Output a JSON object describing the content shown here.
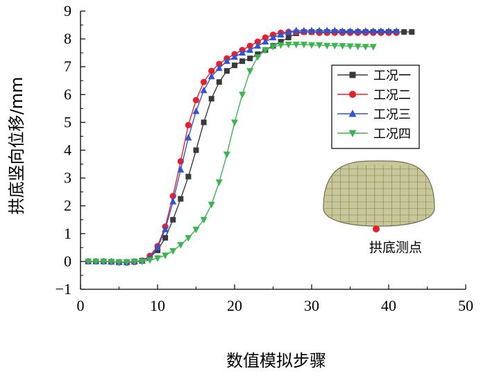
{
  "chart_data": {
    "type": "line",
    "title": "",
    "xlabel": "数值模拟步骤",
    "ylabel": "拱底竖向位移/mm",
    "xlim": [
      0,
      50
    ],
    "ylim": [
      -1,
      9
    ],
    "xticks": [
      0,
      10,
      20,
      30,
      40,
      50
    ],
    "yticks": [
      -1,
      0,
      1,
      2,
      3,
      4,
      5,
      6,
      7,
      8,
      9
    ],
    "legend_position": "right",
    "series": [
      {
        "name": "工况一",
        "color": "#3a3a3a",
        "marker": "square",
        "x": [
          1,
          2,
          3,
          4,
          5,
          6,
          7,
          8,
          9,
          10,
          11,
          12,
          13,
          14,
          15,
          16,
          17,
          18,
          19,
          20,
          21,
          22,
          23,
          24,
          25,
          26,
          27,
          28,
          29,
          30,
          31,
          32,
          33,
          34,
          35,
          36,
          37,
          38,
          39,
          40,
          41,
          42,
          43
        ],
        "y": [
          0.0,
          0.0,
          0.0,
          -0.01,
          -0.02,
          -0.02,
          0.0,
          0.03,
          0.15,
          0.4,
          0.85,
          1.5,
          2.25,
          3.05,
          4.0,
          5.0,
          5.85,
          6.45,
          6.85,
          7.05,
          7.2,
          7.3,
          7.45,
          7.6,
          7.75,
          7.9,
          8.05,
          8.2,
          8.25,
          8.25,
          8.25,
          8.25,
          8.25,
          8.25,
          8.25,
          8.25,
          8.25,
          8.25,
          8.25,
          8.25,
          8.25,
          8.25,
          8.25
        ]
      },
      {
        "name": "工况二",
        "color": "#e8202a",
        "marker": "circle",
        "x": [
          1,
          2,
          3,
          4,
          5,
          6,
          7,
          8,
          9,
          10,
          11,
          12,
          13,
          14,
          15,
          16,
          17,
          18,
          19,
          20,
          21,
          22,
          23,
          24,
          25,
          26,
          27,
          28,
          29,
          30,
          31,
          32,
          33,
          34,
          35,
          36,
          37,
          38,
          39,
          40,
          41
        ],
        "y": [
          0.0,
          0.0,
          0.0,
          -0.01,
          -0.03,
          -0.04,
          -0.02,
          0.02,
          0.2,
          0.55,
          1.25,
          2.35,
          3.6,
          4.9,
          5.8,
          6.45,
          6.85,
          7.1,
          7.3,
          7.45,
          7.6,
          7.75,
          7.9,
          8.05,
          8.15,
          8.22,
          8.25,
          8.25,
          8.25,
          8.25,
          8.22,
          8.22,
          8.22,
          8.22,
          8.22,
          8.22,
          8.22,
          8.22,
          8.22,
          8.22,
          8.22
        ]
      },
      {
        "name": "工况三",
        "color": "#2f55d4",
        "marker": "triangle-up",
        "x": [
          1,
          2,
          3,
          4,
          5,
          6,
          7,
          8,
          9,
          10,
          11,
          12,
          13,
          14,
          15,
          16,
          17,
          18,
          19,
          20,
          21,
          22,
          23,
          24,
          25,
          26,
          27,
          28,
          29,
          30,
          31,
          32,
          33,
          34,
          35,
          36,
          37,
          38,
          39,
          40,
          41
        ],
        "y": [
          0.0,
          0.0,
          0.0,
          -0.01,
          -0.03,
          -0.03,
          -0.01,
          0.02,
          0.15,
          0.5,
          1.15,
          2.15,
          3.3,
          4.45,
          5.4,
          6.15,
          6.65,
          6.95,
          7.2,
          7.35,
          7.5,
          7.6,
          7.75,
          7.9,
          8.05,
          8.15,
          8.25,
          8.3,
          8.3,
          8.3,
          8.3,
          8.3,
          8.3,
          8.28,
          8.28,
          8.28,
          8.28,
          8.28,
          8.28,
          8.28,
          8.28
        ]
      },
      {
        "name": "工况四",
        "color": "#3cb550",
        "marker": "triangle-down",
        "x": [
          1,
          2,
          3,
          4,
          5,
          6,
          7,
          8,
          9,
          10,
          11,
          12,
          13,
          14,
          15,
          16,
          17,
          18,
          19,
          20,
          21,
          22,
          23,
          24,
          25,
          26,
          27,
          28,
          29,
          30,
          31,
          32,
          33,
          34,
          35,
          36,
          37,
          38
        ],
        "y": [
          0.0,
          0.0,
          0.0,
          -0.01,
          -0.02,
          -0.02,
          -0.01,
          0.0,
          0.05,
          0.12,
          0.22,
          0.38,
          0.6,
          0.85,
          1.15,
          1.5,
          2.05,
          2.85,
          3.85,
          5.0,
          6.0,
          6.85,
          7.35,
          7.6,
          7.72,
          7.78,
          7.8,
          7.8,
          7.8,
          7.78,
          7.78,
          7.76,
          7.76,
          7.75,
          7.74,
          7.73,
          7.72,
          7.72
        ]
      }
    ],
    "annotation": "拱底测点"
  }
}
